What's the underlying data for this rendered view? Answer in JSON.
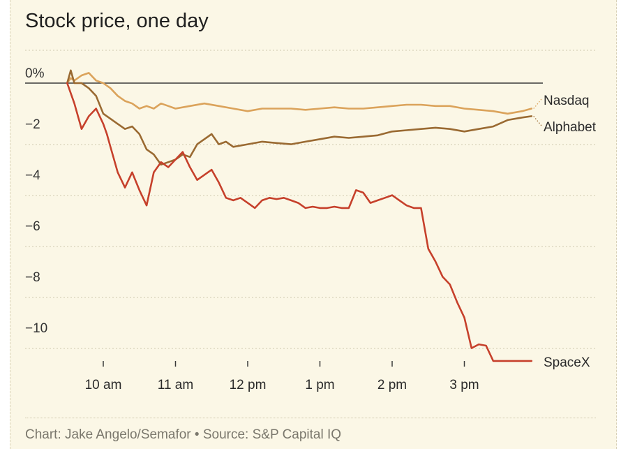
{
  "title": "Stock price, one day",
  "footer": {
    "credit": "Chart: Jake Angelo/Semafor",
    "separator": "•",
    "source": "Source: S&P Capital IQ"
  },
  "chart_data": {
    "type": "line",
    "title": "Stock price, one day",
    "xlabel": "",
    "ylabel": "",
    "x_ticks": [
      "10 am",
      "11 am",
      "12 pm",
      "1 pm",
      "2 pm",
      "3 pm"
    ],
    "x_tick_hours": [
      10,
      11,
      12,
      13,
      14,
      15
    ],
    "xlim": [
      9.5,
      16.0
    ],
    "y_ticks": [
      "0%",
      "−2",
      "−4",
      "−6",
      "−8",
      "−10"
    ],
    "y_tick_values": [
      0,
      -2,
      -4,
      -6,
      -8,
      -10
    ],
    "ylim": [
      -11.3,
      0.8
    ],
    "grid": true,
    "series": [
      {
        "name": "Nasdaq",
        "color": "#dba35b",
        "x": [
          9.5,
          9.55,
          9.6,
          9.7,
          9.8,
          9.9,
          10.0,
          10.1,
          10.2,
          10.3,
          10.4,
          10.5,
          10.6,
          10.7,
          10.8,
          10.9,
          11.0,
          11.2,
          11.4,
          11.6,
          11.8,
          12.0,
          12.2,
          12.4,
          12.6,
          12.8,
          13.0,
          13.2,
          13.4,
          13.6,
          13.8,
          14.0,
          14.2,
          14.4,
          14.6,
          14.8,
          15.0,
          15.2,
          15.4,
          15.6,
          15.8,
          15.93
        ],
        "values": [
          0.0,
          0.2,
          0.1,
          0.3,
          0.4,
          0.1,
          0.0,
          -0.2,
          -0.5,
          -0.7,
          -0.8,
          -1.0,
          -0.9,
          -1.0,
          -0.8,
          -0.9,
          -1.0,
          -0.9,
          -0.8,
          -0.9,
          -1.0,
          -1.1,
          -1.0,
          -1.0,
          -1.0,
          -1.05,
          -1.0,
          -0.95,
          -1.0,
          -1.0,
          -0.95,
          -0.9,
          -0.85,
          -0.85,
          -0.9,
          -0.9,
          -1.0,
          -1.05,
          -1.1,
          -1.2,
          -1.1,
          -1.0
        ]
      },
      {
        "name": "Alphabet",
        "color": "#9a6a32",
        "x": [
          9.5,
          9.55,
          9.6,
          9.7,
          9.8,
          9.9,
          10.0,
          10.1,
          10.2,
          10.3,
          10.4,
          10.5,
          10.6,
          10.7,
          10.8,
          10.9,
          11.0,
          11.1,
          11.2,
          11.3,
          11.4,
          11.5,
          11.6,
          11.7,
          11.8,
          12.0,
          12.2,
          12.4,
          12.6,
          12.8,
          13.0,
          13.2,
          13.4,
          13.6,
          13.8,
          14.0,
          14.2,
          14.4,
          14.6,
          14.8,
          15.0,
          15.2,
          15.4,
          15.6,
          15.8,
          15.93
        ],
        "values": [
          0.0,
          0.5,
          0.0,
          0.0,
          -0.2,
          -0.5,
          -1.2,
          -1.4,
          -1.6,
          -1.8,
          -1.7,
          -2.0,
          -2.6,
          -2.8,
          -3.2,
          -3.1,
          -3.0,
          -2.8,
          -2.9,
          -2.4,
          -2.2,
          -2.0,
          -2.4,
          -2.3,
          -2.5,
          -2.4,
          -2.3,
          -2.35,
          -2.4,
          -2.3,
          -2.2,
          -2.1,
          -2.15,
          -2.1,
          -2.05,
          -1.9,
          -1.85,
          -1.8,
          -1.75,
          -1.8,
          -1.9,
          -1.8,
          -1.7,
          -1.45,
          -1.35,
          -1.3
        ]
      },
      {
        "name": "SpaceX",
        "color": "#c6402b",
        "x": [
          9.5,
          9.6,
          9.7,
          9.8,
          9.9,
          10.0,
          10.05,
          10.1,
          10.2,
          10.3,
          10.4,
          10.5,
          10.6,
          10.7,
          10.8,
          10.9,
          11.0,
          11.1,
          11.2,
          11.3,
          11.4,
          11.5,
          11.6,
          11.7,
          11.8,
          11.9,
          12.0,
          12.1,
          12.2,
          12.3,
          12.4,
          12.5,
          12.6,
          12.7,
          12.8,
          12.9,
          13.0,
          13.1,
          13.2,
          13.3,
          13.4,
          13.5,
          13.6,
          13.7,
          13.8,
          13.9,
          14.0,
          14.1,
          14.2,
          14.3,
          14.4,
          14.5,
          14.6,
          14.7,
          14.8,
          14.9,
          15.0,
          15.1,
          15.2,
          15.3,
          15.4,
          15.5,
          15.6,
          15.7,
          15.8,
          15.93
        ],
        "values": [
          0.0,
          -0.8,
          -1.8,
          -1.3,
          -1.0,
          -1.6,
          -2.0,
          -2.5,
          -3.5,
          -4.1,
          -3.5,
          -4.2,
          -4.8,
          -3.5,
          -3.1,
          -3.3,
          -3.0,
          -2.7,
          -3.3,
          -3.8,
          -3.6,
          -3.4,
          -3.9,
          -4.5,
          -4.6,
          -4.5,
          -4.7,
          -4.9,
          -4.6,
          -4.5,
          -4.55,
          -4.5,
          -4.6,
          -4.7,
          -4.9,
          -4.85,
          -4.9,
          -4.9,
          -4.85,
          -4.9,
          -4.9,
          -4.2,
          -4.3,
          -4.7,
          -4.6,
          -4.5,
          -4.4,
          -4.6,
          -4.8,
          -4.9,
          -4.9,
          -6.5,
          -7.0,
          -7.6,
          -7.9,
          -8.6,
          -9.2,
          -10.4,
          -10.25,
          -10.3,
          -10.9,
          -10.9,
          -10.9,
          -10.9,
          -10.9,
          -10.9
        ]
      }
    ],
    "legend": "end-of-line labels"
  }
}
